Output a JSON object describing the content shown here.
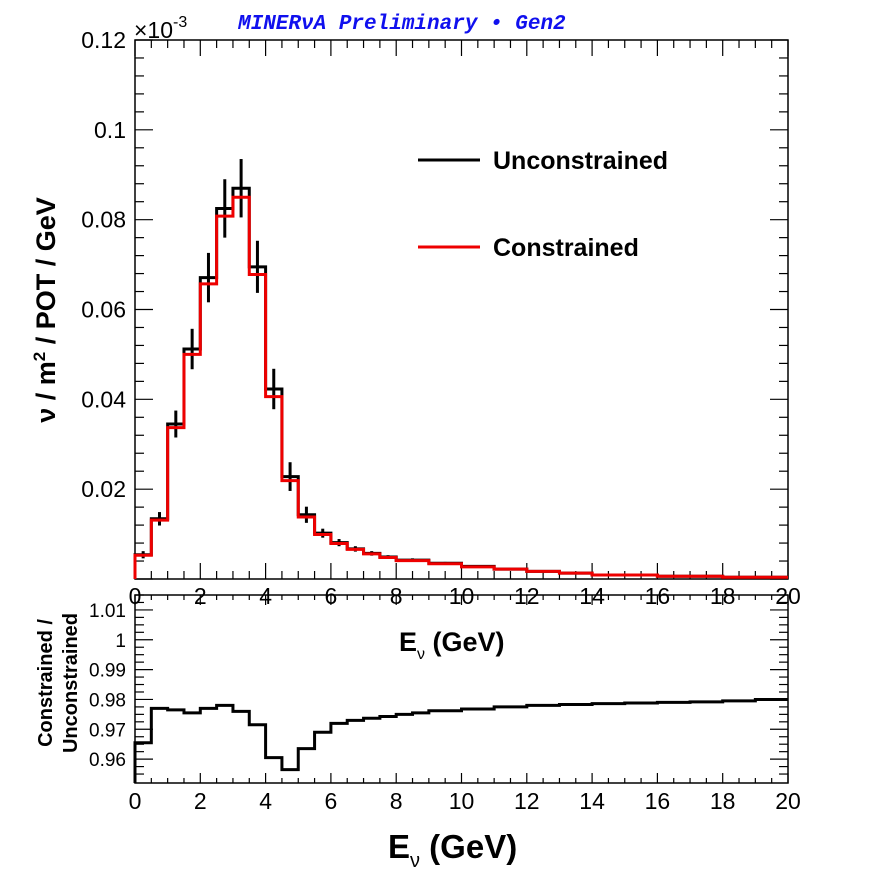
{
  "banner": {
    "text": "MINERνA Preliminary • Gen2",
    "color": "#1010ee"
  },
  "chart_data": [
    {
      "type": "histogram",
      "title": "",
      "exponent_label": "×10",
      "exponent_power": "-3",
      "xlabel": "",
      "ylabel_parts": [
        "ν / m",
        "2",
        " / POT / GeV"
      ],
      "xlim": [
        0,
        20
      ],
      "ylim": [
        0,
        0.12
      ],
      "x_ticks": [
        "0",
        "2",
        "4",
        "6",
        "8",
        "10",
        "12",
        "14",
        "16",
        "18",
        "20"
      ],
      "y_ticks": [
        "0.02",
        "0.04",
        "0.06",
        "0.08",
        "0.1",
        "0.12"
      ],
      "y_tick_values": [
        0.02,
        0.04,
        0.06,
        0.08,
        0.1,
        0.12
      ],
      "bin_edges": [
        0,
        0.5,
        1,
        1.5,
        2,
        2.5,
        3,
        3.5,
        4,
        4.5,
        5,
        5.5,
        6,
        6.5,
        7,
        7.5,
        8,
        9,
        10,
        11,
        12,
        13,
        14,
        16,
        18,
        20
      ],
      "series": [
        {
          "name": "Unconstrained",
          "color": "#000000",
          "values": [
            0.0054,
            0.0134,
            0.0345,
            0.0512,
            0.0671,
            0.0825,
            0.087,
            0.0695,
            0.0423,
            0.0228,
            0.0143,
            0.0102,
            0.0081,
            0.0067,
            0.0057,
            0.0049,
            0.0042,
            0.0035,
            0.0028,
            0.0022,
            0.0017,
            0.0013,
            0.0009,
            0.0006,
            0.0004
          ],
          "errors": [
            0.0008,
            0.0015,
            0.003,
            0.0045,
            0.0055,
            0.0065,
            0.0065,
            0.0058,
            0.0045,
            0.0032,
            0.0018,
            0.001,
            0.0008,
            0.0006,
            0.0005,
            0.0004,
            0.0004,
            0.0003,
            0.0003,
            0.0002,
            0.0002,
            0.0002,
            0.0001,
            0.0001,
            0.0001
          ]
        },
        {
          "name": "Constrained",
          "color": "#ee0000",
          "values": [
            0.0053,
            0.0131,
            0.0337,
            0.05,
            0.0657,
            0.0808,
            0.085,
            0.0678,
            0.0406,
            0.0219,
            0.0138,
            0.0099,
            0.0079,
            0.0066,
            0.0056,
            0.0048,
            0.0041,
            0.0034,
            0.0027,
            0.0022,
            0.0017,
            0.0013,
            0.0009,
            0.0006,
            0.0004
          ]
        }
      ],
      "legend": [
        "Unconstrained",
        "Constrained"
      ],
      "legend_position": "top-right"
    },
    {
      "type": "histogram",
      "xlabel_parts": [
        "E",
        "ν",
        " (GeV)"
      ],
      "ylabel_lines": [
        "Constrained /",
        "Unconstrained"
      ],
      "xlim": [
        0,
        20
      ],
      "ylim": [
        0.952,
        1.015
      ],
      "x_ticks": [
        "0",
        "2",
        "4",
        "6",
        "8",
        "10",
        "12",
        "14",
        "16",
        "18",
        "20"
      ],
      "y_ticks": [
        "0.96",
        "0.97",
        "0.98",
        "0.99",
        "1",
        "1.01"
      ],
      "y_tick_values": [
        0.96,
        0.97,
        0.98,
        0.99,
        1.0,
        1.01
      ],
      "bin_edges": [
        0,
        0.5,
        1,
        1.5,
        2,
        2.5,
        3,
        3.5,
        4,
        4.5,
        5,
        5.5,
        6,
        6.5,
        7,
        7.5,
        8,
        8.5,
        9,
        10,
        11,
        12,
        13,
        14,
        15,
        16,
        17,
        18,
        19,
        20
      ],
      "series": [
        {
          "name": "Constrained / Unconstrained",
          "color": "#000000",
          "values": [
            0.9655,
            0.977,
            0.9765,
            0.9755,
            0.977,
            0.978,
            0.976,
            0.9715,
            0.9605,
            0.9565,
            0.9635,
            0.969,
            0.972,
            0.973,
            0.9737,
            0.9743,
            0.975,
            0.9755,
            0.9762,
            0.9768,
            0.9775,
            0.978,
            0.9783,
            0.9786,
            0.9788,
            0.979,
            0.9792,
            0.9795,
            0.98
          ]
        }
      ]
    }
  ]
}
